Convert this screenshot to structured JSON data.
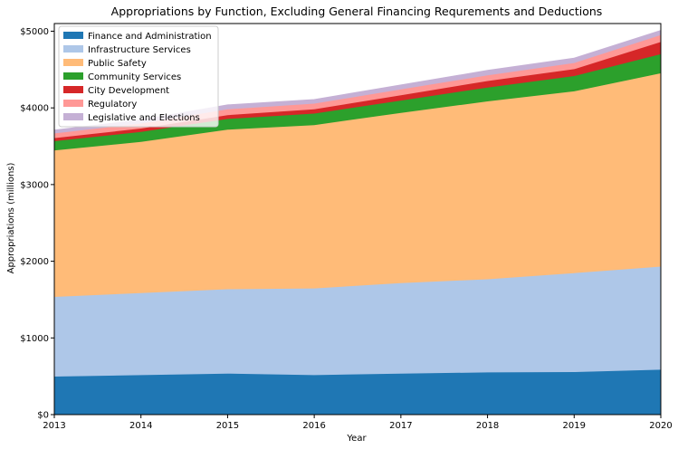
{
  "chart_data": {
    "type": "area",
    "stacked": true,
    "title": "Appropriations by Function, Excluding General Financing Requrements and Deductions",
    "xlabel": "Year",
    "ylabel": "Appropriations (millions)",
    "x": [
      2013,
      2014,
      2015,
      2016,
      2017,
      2018,
      2019,
      2020
    ],
    "xlim": [
      2013,
      2020
    ],
    "ylim": [
      0,
      5100
    ],
    "y_ticks": [
      0,
      1000,
      2000,
      3000,
      4000,
      5000
    ],
    "y_tick_labels": [
      "$0",
      "$1000",
      "$2000",
      "$3000",
      "$4000",
      "$5000"
    ],
    "x_tick_labels": [
      "2013",
      "2014",
      "2015",
      "2016",
      "2017",
      "2018",
      "2019",
      "2020"
    ],
    "grid": false,
    "legend_position": "top-left",
    "series": [
      {
        "name": "Finance and Administration",
        "color": "#1f77b4",
        "values": [
          500,
          520,
          540,
          520,
          540,
          555,
          560,
          590
        ]
      },
      {
        "name": "Infrastructure Services",
        "color": "#aec7e8",
        "values": [
          1040,
          1070,
          1100,
          1130,
          1180,
          1215,
          1290,
          1345
        ]
      },
      {
        "name": "Public Safety",
        "color": "#ffbb78",
        "values": [
          1910,
          1970,
          2080,
          2130,
          2220,
          2320,
          2370,
          2520
        ]
      },
      {
        "name": "Community Services",
        "color": "#2ca02c",
        "values": [
          120,
          130,
          140,
          150,
          160,
          180,
          200,
          250
        ]
      },
      {
        "name": "City Development",
        "color": "#d62728",
        "values": [
          40,
          45,
          50,
          55,
          70,
          85,
          90,
          160
        ]
      },
      {
        "name": "Regulatory",
        "color": "#ff9896",
        "values": [
          60,
          65,
          75,
          75,
          75,
          75,
          80,
          90
        ]
      },
      {
        "name": "Legislative and Elections",
        "color": "#c5b0d5",
        "values": [
          40,
          45,
          55,
          50,
          55,
          60,
          60,
          55
        ]
      }
    ]
  }
}
